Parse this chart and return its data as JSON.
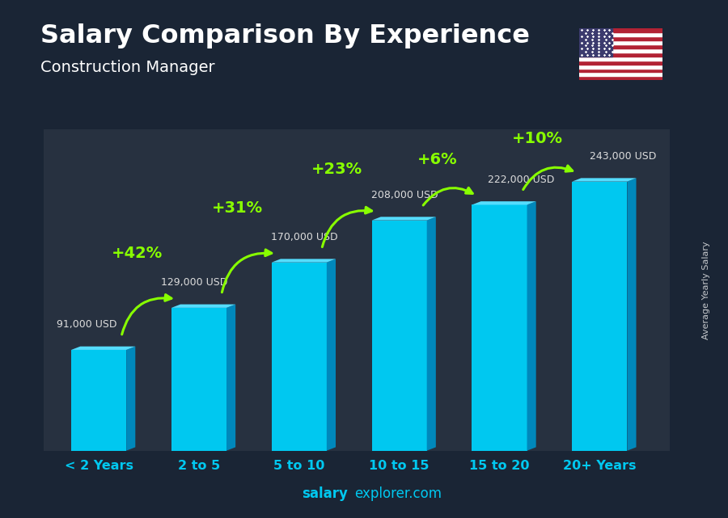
{
  "title": "Salary Comparison By Experience",
  "subtitle": "Construction Manager",
  "categories": [
    "< 2 Years",
    "2 to 5",
    "5 to 10",
    "10 to 15",
    "15 to 20",
    "20+ Years"
  ],
  "values": [
    91000,
    129000,
    170000,
    208000,
    222000,
    243000
  ],
  "labels": [
    "91,000 USD",
    "129,000 USD",
    "170,000 USD",
    "208,000 USD",
    "222,000 USD",
    "243,000 USD"
  ],
  "pct_changes": [
    "+42%",
    "+31%",
    "+23%",
    "+6%",
    "+10%"
  ],
  "bar_face_color": "#00c8f0",
  "bar_side_color": "#0088bb",
  "bar_top_color": "#55ddff",
  "bg_color": "#1a2535",
  "title_color": "#ffffff",
  "subtitle_color": "#ffffff",
  "label_color": "#dddddd",
  "pct_color": "#88ff00",
  "tick_color": "#00c8f0",
  "ylabel_text": "Average Yearly Salary",
  "footer_salary": "salary",
  "footer_rest": "explorer.com",
  "footer_color": "#00c8f0",
  "ylim": [
    0,
    290000
  ]
}
